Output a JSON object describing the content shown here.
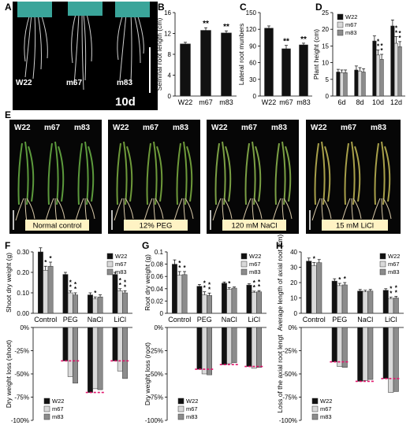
{
  "panel_labels": {
    "A": "A",
    "B": "B",
    "C": "C",
    "D": "D",
    "E": "E",
    "F": "F",
    "G": "G",
    "H": "H"
  },
  "photo_a": {
    "labels": [
      "W22",
      "m67",
      "m83"
    ],
    "day_label": "10d"
  },
  "photo_e": {
    "headers": [
      "W22",
      "m67",
      "m83"
    ],
    "captions": [
      "Normal control",
      "12% PEG",
      "120 mM NaCl",
      "15 mM LiCl"
    ]
  },
  "chart_data": [
    {
      "id": "B",
      "type": "bar",
      "categories": [
        "W22",
        "m67",
        "m83"
      ],
      "values": [
        10.0,
        12.6,
        12.1
      ],
      "errors": [
        0.3,
        0.5,
        0.4
      ],
      "sig": [
        "",
        "**",
        "**"
      ],
      "ylabel": "Seminal root length (cm)",
      "ylim": [
        0,
        16
      ],
      "ticks": [
        0,
        4,
        8,
        12,
        16
      ]
    },
    {
      "id": "C",
      "type": "bar",
      "categories": [
        "W22",
        "m67",
        "m83"
      ],
      "values": [
        122,
        85,
        92
      ],
      "errors": [
        4,
        6,
        3
      ],
      "sig": [
        "",
        "**",
        "**"
      ],
      "ylabel": "Lateral root munbers",
      "ylim": [
        0,
        150
      ],
      "ticks": [
        0,
        30,
        60,
        90,
        120,
        150
      ]
    },
    {
      "id": "D",
      "type": "bar",
      "categories": [
        "6d",
        "8d",
        "10d",
        "12d"
      ],
      "ylabel": "Plant height (cm)",
      "ylim": [
        0,
        25
      ],
      "ticks": [
        0,
        5,
        10,
        15,
        20,
        25
      ],
      "legend": "top-left",
      "series": [
        {
          "name": "W22",
          "color": "#111111",
          "values": [
            7.2,
            7.8,
            16.5,
            21.0
          ],
          "errors": [
            0.8,
            1.2,
            1.5,
            1.8
          ],
          "sig": [
            "",
            "",
            "",
            ""
          ]
        },
        {
          "name": "m67",
          "color": "#d9d9d9",
          "values": [
            7.0,
            7.5,
            12.3,
            15.8
          ],
          "errors": [
            0.8,
            1.0,
            1.5,
            2.0
          ],
          "sig": [
            "",
            "",
            "**",
            "**"
          ]
        },
        {
          "name": "m83",
          "color": "#8c8c8c",
          "values": [
            7.0,
            7.2,
            11.0,
            14.8
          ],
          "errors": [
            0.8,
            1.0,
            1.5,
            1.5
          ],
          "sig": [
            "",
            "",
            "**",
            "**"
          ]
        }
      ]
    },
    {
      "id": "F",
      "type": "bar",
      "categories": [
        "Control",
        "PEG",
        "NaCl",
        "LiCl"
      ],
      "ylabel": "Shoot dry weight (g)",
      "ylim": [
        0,
        0.3
      ],
      "ticks": [
        0,
        0.1,
        0.2,
        0.3
      ],
      "tick_labels": [
        "0.00",
        "0.10",
        "0.20",
        "0.30"
      ],
      "legend": "top-right",
      "series": [
        {
          "name": "W22",
          "color": "#111111",
          "values": [
            0.3,
            0.19,
            0.09,
            0.19
          ],
          "errors": [
            0.02,
            0.01,
            0.01,
            0.01
          ],
          "sig": [
            "",
            "",
            "",
            ""
          ]
        },
        {
          "name": "m67",
          "color": "#d9d9d9",
          "values": [
            0.21,
            0.1,
            0.07,
            0.11
          ],
          "errors": [
            0.02,
            0.01,
            0.01,
            0.01
          ],
          "sig": [
            "*",
            "**",
            "*",
            "**"
          ]
        },
        {
          "name": "m83",
          "color": "#8c8c8c",
          "values": [
            0.23,
            0.09,
            0.08,
            0.1
          ],
          "errors": [
            0.02,
            0.01,
            0.01,
            0.01
          ],
          "sig": [
            "*",
            "**",
            "",
            "**"
          ]
        }
      ]
    },
    {
      "id": "F2",
      "type": "bar",
      "categories": [
        "Control",
        "PEG",
        "NaCl",
        "LiCl"
      ],
      "ylabel": "Dry weight loss (shoot)",
      "ylim": [
        -100,
        0
      ],
      "ticks": [
        0,
        -25,
        -50,
        -75,
        -100
      ],
      "tick_labels": [
        "0%",
        "-25%",
        "-50%",
        "-75%",
        "-100%"
      ],
      "legend": "bottom-left",
      "series": [
        {
          "name": "W22",
          "color": "#111111",
          "values": [
            0,
            -36,
            -70,
            -36
          ],
          "errors": [
            0,
            0,
            0,
            0
          ]
        },
        {
          "name": "m67",
          "color": "#d9d9d9",
          "values": [
            0,
            -53,
            -66,
            -47
          ],
          "errors": [
            0,
            0,
            0,
            0
          ]
        },
        {
          "name": "m83",
          "color": "#8c8c8c",
          "values": [
            0,
            -60,
            -67,
            -55
          ],
          "errors": [
            0,
            0,
            0,
            0
          ]
        }
      ],
      "reference": [
        -36,
        -36,
        -70,
        -36
      ]
    },
    {
      "id": "G",
      "type": "bar",
      "categories": [
        "Control",
        "PEG",
        "NaCl",
        "LiCl"
      ],
      "ylabel": "Root dry weight (g)",
      "ylim": [
        0,
        0.1
      ],
      "ticks": [
        0,
        0.02,
        0.04,
        0.06,
        0.08,
        0.1
      ],
      "tick_labels": [
        "0",
        "0.02",
        "0.04",
        "0.06",
        "0.08",
        "0.1"
      ],
      "legend": "top-right",
      "series": [
        {
          "name": "W22",
          "color": "#111111",
          "values": [
            0.08,
            0.044,
            0.049,
            0.046
          ],
          "errors": [
            0.007,
            0.003,
            0.002,
            0.002
          ],
          "sig": [
            "",
            "",
            "",
            ""
          ]
        },
        {
          "name": "m67",
          "color": "#d9d9d9",
          "values": [
            0.062,
            0.03,
            0.039,
            0.034
          ],
          "errors": [
            0.006,
            0.005,
            0.003,
            0.002
          ],
          "sig": [
            "**",
            "**",
            "*",
            "**"
          ]
        },
        {
          "name": "m83",
          "color": "#8c8c8c",
          "values": [
            0.063,
            0.029,
            0.041,
            0.035
          ],
          "errors": [
            0.005,
            0.004,
            0.002,
            0.002
          ],
          "sig": [
            "*",
            "**",
            "",
            "**"
          ]
        }
      ]
    },
    {
      "id": "G2",
      "type": "bar",
      "categories": [
        "Control",
        "PEG",
        "NaCl",
        "LiCl"
      ],
      "ylabel": "Dry weight loss (root)",
      "ylim": [
        -100,
        0
      ],
      "ticks": [
        0,
        -25,
        -50,
        -75,
        -100
      ],
      "tick_labels": [
        "0%",
        "-25%",
        "-50%",
        "-75%",
        "-100%"
      ],
      "legend": "bottom-left",
      "series": [
        {
          "name": "W22",
          "color": "#111111",
          "values": [
            0,
            -45,
            -40,
            -42
          ],
          "errors": [
            0,
            0,
            0,
            0
          ]
        },
        {
          "name": "m67",
          "color": "#d9d9d9",
          "values": [
            0,
            -50,
            -39,
            -44
          ],
          "errors": [
            0,
            0,
            0,
            0
          ]
        },
        {
          "name": "m83",
          "color": "#8c8c8c",
          "values": [
            0,
            -51,
            -38,
            -43
          ],
          "errors": [
            0,
            0,
            0,
            0
          ]
        }
      ],
      "reference": [
        -45,
        -45,
        -40,
        -42
      ]
    },
    {
      "id": "H",
      "type": "bar",
      "categories": [
        "Control",
        "PEG",
        "NaCl",
        "LiCl"
      ],
      "ylabel": "Average length of axial root (cm)",
      "ylim": [
        0,
        40
      ],
      "ticks": [
        0,
        10,
        20,
        30,
        40
      ],
      "legend": "top-right",
      "series": [
        {
          "name": "W22",
          "color": "#111111",
          "values": [
            34,
            21,
            14.5,
            15
          ],
          "errors": [
            2,
            1.5,
            1,
            1
          ],
          "sig": [
            "",
            "",
            "",
            ""
          ]
        },
        {
          "name": "m67",
          "color": "#d9d9d9",
          "values": [
            31,
            18,
            14,
            9.5
          ],
          "errors": [
            2,
            1.5,
            1,
            1
          ],
          "sig": [
            "*",
            "*",
            "",
            "**"
          ]
        },
        {
          "name": "m83",
          "color": "#8c8c8c",
          "values": [
            33,
            18.5,
            14.5,
            10
          ],
          "errors": [
            2,
            1.5,
            1,
            1
          ],
          "sig": [
            "",
            "*",
            "",
            "**"
          ]
        }
      ]
    },
    {
      "id": "H2",
      "type": "bar",
      "categories": [
        "Control",
        "PEG",
        "NaCl",
        "LiCl"
      ],
      "ylabel": "Loss of the axial root lengt",
      "ylim": [
        -100,
        0
      ],
      "ticks": [
        0,
        -25,
        -50,
        -75,
        -100
      ],
      "tick_labels": [
        "0%",
        "-25%",
        "-50%",
        "-75%",
        "-100%"
      ],
      "legend": "bottom-left",
      "series": [
        {
          "name": "W22",
          "color": "#111111",
          "values": [
            0,
            -37,
            -58,
            -55
          ],
          "errors": [
            0,
            0,
            0,
            0
          ]
        },
        {
          "name": "m67",
          "color": "#d9d9d9",
          "values": [
            0,
            -42,
            -57,
            -70
          ],
          "errors": [
            0,
            0,
            0,
            0
          ]
        },
        {
          "name": "m83",
          "color": "#8c8c8c",
          "values": [
            0,
            -43,
            -56,
            -69
          ],
          "errors": [
            0,
            0,
            0,
            0
          ]
        }
      ],
      "reference": [
        -37,
        -37,
        -58,
        -55
      ]
    }
  ]
}
